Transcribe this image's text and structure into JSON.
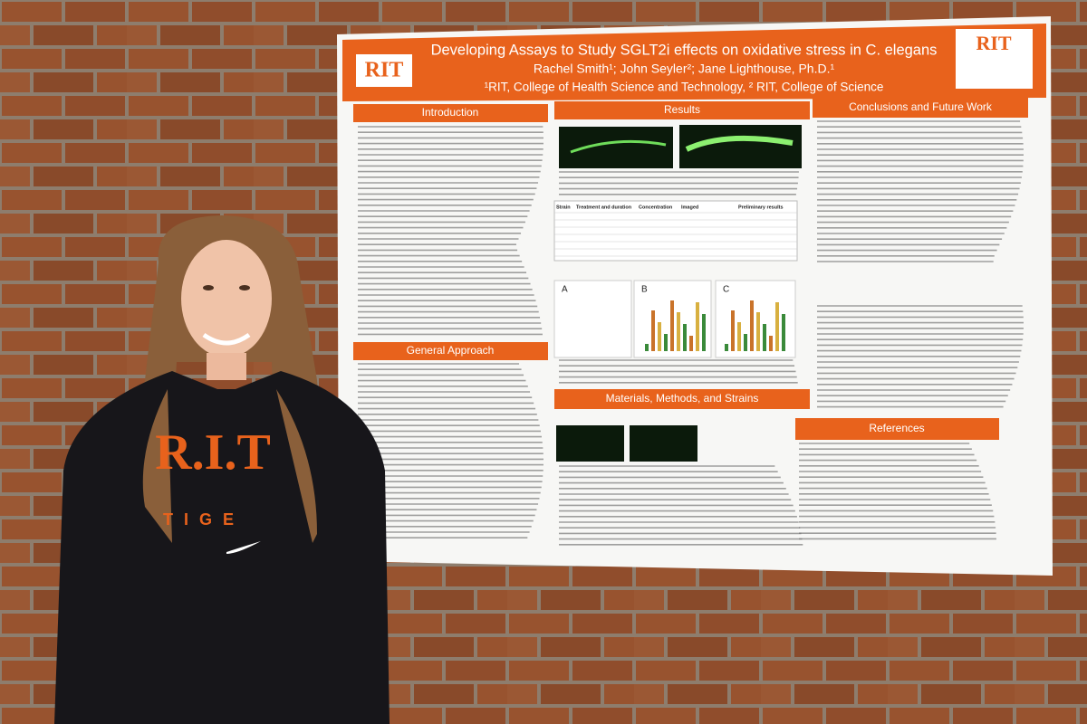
{
  "poster": {
    "logo": "RIT",
    "title": "Developing Assays to Study SGLT2i effects on oxidative stress in C. elegans",
    "authors": "Rachel Smith¹; John Seyler²; Jane Lighthouse, Ph.D.¹",
    "affiliation": "¹RIT, College of Health Science and Technology, ² RIT, College of Science",
    "sections": {
      "introduction": "Introduction",
      "approach": "General Approach",
      "results": "Results",
      "methods": "Materials, Methods, and Strains",
      "conclusions": "Conclusions and Future Work",
      "references": "References"
    },
    "table_header": [
      "Strain",
      "Treatment and duration",
      "Concentration",
      "Imaged",
      "Preliminary results"
    ],
    "figure_labels": [
      "A",
      "B",
      "C"
    ]
  },
  "hoodie": {
    "logo": "R.I.T",
    "text": "TIGE"
  }
}
